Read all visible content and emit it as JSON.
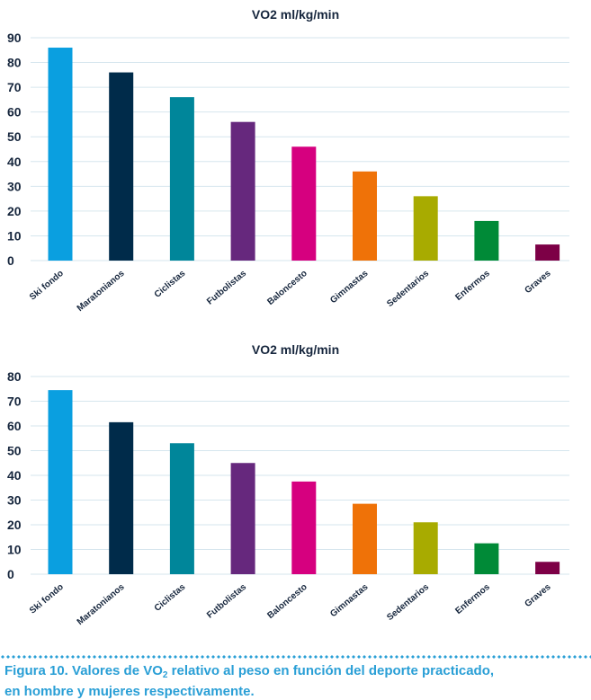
{
  "chart_data": [
    {
      "type": "bar",
      "title": "VO2 ml/kg/min",
      "categories": [
        "Ski fondo",
        "Maratonianos",
        "Ciclistas",
        "Futbolistas",
        "Baloncesto",
        "Gimnastas",
        "Sedentarios",
        "Enfermos",
        "Graves"
      ],
      "values": [
        86,
        76,
        66,
        56,
        46,
        36,
        26,
        16,
        6.5
      ],
      "colors": [
        "#0a9fe0",
        "#002b4a",
        "#00869a",
        "#66287d",
        "#d6007f",
        "#ef7208",
        "#a8ab00",
        "#008a37",
        "#7d0046"
      ],
      "ylim": [
        0,
        90
      ],
      "yticks": [
        0,
        10,
        20,
        30,
        40,
        50,
        60,
        70,
        80,
        90
      ],
      "grid": true
    },
    {
      "type": "bar",
      "title": "VO2 ml/kg/min",
      "categories": [
        "Ski fondo",
        "Maratonianos",
        "Ciclistas",
        "Futbolistas",
        "Baloncesto",
        "Gimnastas",
        "Sedentarios",
        "Enfermos",
        "Graves"
      ],
      "values": [
        74.5,
        61.5,
        53,
        45,
        37.5,
        28.5,
        21,
        12.5,
        5
      ],
      "colors": [
        "#0a9fe0",
        "#002b4a",
        "#00869a",
        "#66287d",
        "#d6007f",
        "#ef7208",
        "#a8ab00",
        "#008a37",
        "#7d0046"
      ],
      "ylim": [
        0,
        80
      ],
      "yticks": [
        0,
        10,
        20,
        30,
        40,
        50,
        60,
        70,
        80
      ],
      "grid": true
    }
  ],
  "caption": {
    "prefix": "Figura 10. Valores de VO",
    "subscript": "2",
    "suffix": " relativo al peso en función del deporte practicado,",
    "line2": "en hombre y mujeres respectivamente."
  }
}
